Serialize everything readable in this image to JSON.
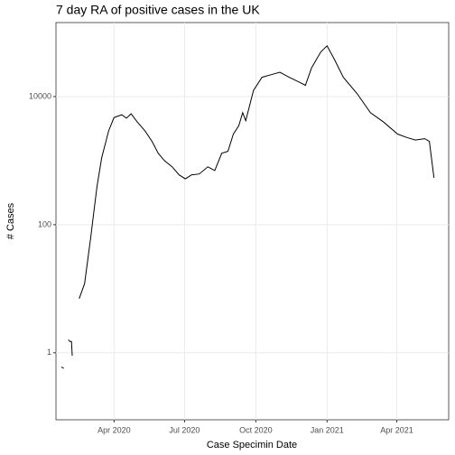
{
  "chart_data": {
    "type": "line",
    "title": "7 day RA of positive cases in the UK",
    "xlabel": "Case Specimin Date",
    "ylabel": "# Cases",
    "log_y": true,
    "grid": true,
    "color": "#000000",
    "xlim": [
      "2020-01-17",
      "2021-06-07"
    ],
    "xticks": [
      {
        "value": "2020-04-01",
        "label": "Apr 2020"
      },
      {
        "value": "2020-07-01",
        "label": "Jul 2020"
      },
      {
        "value": "2020-10-01",
        "label": "Oct 2020"
      },
      {
        "value": "2021-01-01",
        "label": "Jan 2021"
      },
      {
        "value": "2021-04-01",
        "label": "Apr 2021"
      }
    ],
    "ylim": [
      0.09,
      143000
    ],
    "yticks": [
      1,
      100,
      10000
    ],
    "x": [
      "2020-01-24",
      "2020-01-27",
      "2020-01-29",
      "2020-02-02",
      "2020-02-04",
      "2020-02-06",
      "2020-02-07",
      "2020-02-10",
      "2020-02-16",
      "2020-02-23",
      "2020-03-02",
      "2020-03-05",
      "2020-03-10",
      "2020-03-16",
      "2020-03-25",
      "2020-04-01",
      "2020-04-11",
      "2020-04-17",
      "2020-04-23",
      "2020-05-01",
      "2020-05-11",
      "2020-05-20",
      "2020-05-28",
      "2020-06-05",
      "2020-06-15",
      "2020-06-24",
      "2020-07-02",
      "2020-07-10",
      "2020-07-20",
      "2020-07-31",
      "2020-08-09",
      "2020-08-18",
      "2020-08-26",
      "2020-09-02",
      "2020-09-09",
      "2020-09-14",
      "2020-09-18",
      "2020-09-28",
      "2020-10-09",
      "2020-10-21",
      "2020-11-01",
      "2020-11-13",
      "2020-11-25",
      "2020-12-04",
      "2020-12-12",
      "2020-12-24",
      "2021-01-01",
      "2021-01-10",
      "2021-01-22",
      "2021-02-09",
      "2021-02-26",
      "2021-03-15",
      "2021-04-02",
      "2021-04-14",
      "2021-04-25",
      "2021-05-07",
      "2021-05-13",
      "2021-05-19"
    ],
    "values": [
      0.6,
      0.57,
      null,
      1.6,
      1.5,
      1.5,
      0.9,
      null,
      7,
      12,
      65,
      130,
      400,
      1100,
      2900,
      4700,
      5200,
      4600,
      5400,
      4000,
      2900,
      2000,
      1300,
      1000,
      800,
      600,
      520,
      600,
      620,
      800,
      700,
      1300,
      1400,
      2600,
      3500,
      5600,
      4200,
      12500,
      20000,
      22000,
      24000,
      20000,
      17000,
      15000,
      28000,
      50000,
      62000,
      39000,
      20000,
      11000,
      5600,
      4000,
      2600,
      2300,
      2100,
      2200,
      2000,
      540
    ]
  }
}
